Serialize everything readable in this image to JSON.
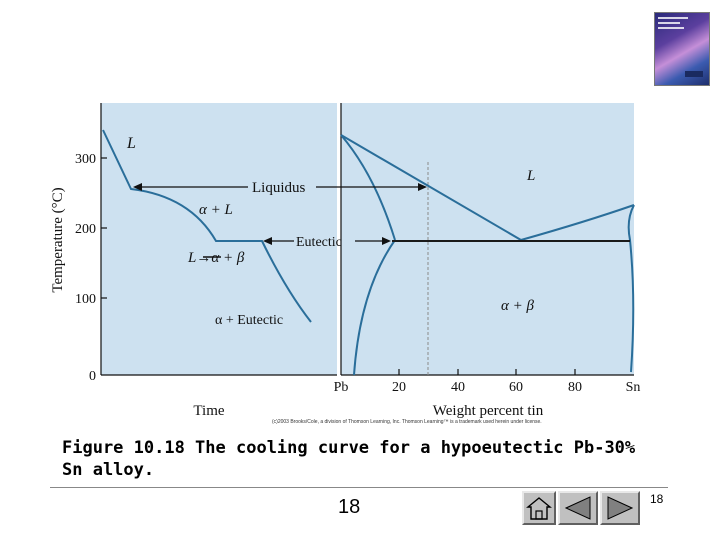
{
  "diagram": {
    "cooling_curve": {
      "y_axis_label": "Temperature (°C)",
      "y_ticks": [
        "300",
        "200",
        "100",
        "0"
      ],
      "x_axis_label": "Time",
      "region_liquid": "L",
      "region_alpha_liquid": "α + L",
      "region_reaction": "L→α + β",
      "region_alpha_eutectic": "α + Eutectic"
    },
    "phase_diagram": {
      "x_axis_label": "Weight percent tin",
      "x_ticks": [
        "Pb",
        "20",
        "40",
        "60",
        "80",
        "Sn"
      ],
      "region_liquid": "L",
      "region_alpha_beta": "α + β"
    },
    "arrow_labels": {
      "liquidus": "Liquidus",
      "eutectic": "Eutectic"
    },
    "copyright": "(c)2003 Brooks/Cole, a division of Thomson Learning, Inc. Thomson Learning™ is a trademark used herein under license."
  },
  "caption": "Figure 10.18 The cooling curve for a hypoeutectic Pb-30% Sn alloy.",
  "footer": {
    "page_number": "18",
    "page_index": "18"
  },
  "colors": {
    "panel_background": "#cde1f0",
    "curve": "#2a6e9a",
    "accent_line": "#1a1a1a"
  }
}
